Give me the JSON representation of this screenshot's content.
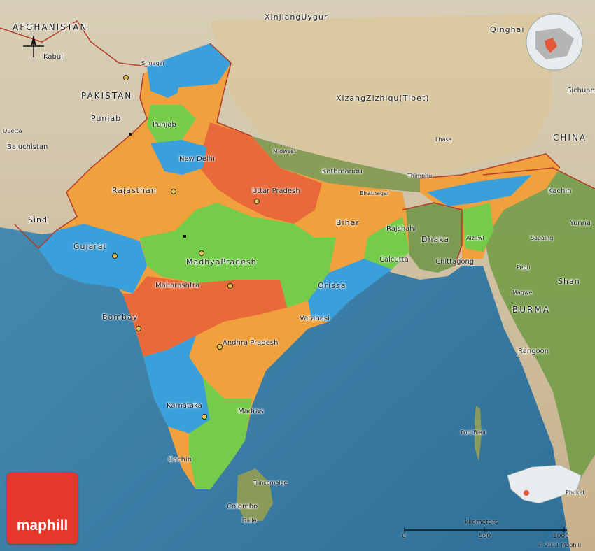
{
  "map": {
    "countries": {
      "afghanistan": "AFGHANISTAN",
      "pakistan": "PAKISTAN",
      "china": "CHINA",
      "burma": "BURMA"
    },
    "regions": {
      "xinjiang": "XinjiangUygur",
      "qinghai": "Qinghai",
      "xizang": "XizangZizhiqu(Tibet)",
      "sichuan": "Sichuan",
      "baluchistan": "Baluchistan",
      "sind": "Sind",
      "punjab_pk": "Punjab",
      "punjab_in": "Punjab",
      "rajasthan": "Rajasthan",
      "gujarat": "Gujarat",
      "madhya_pradesh": "MadhyaPradesh",
      "maharashtra": "Maharashtra",
      "uttar_pradesh": "Uttar Pradesh",
      "bihar": "Bihar",
      "orissa": "Orissa",
      "andhra_pradesh": "Andhra Pradesh",
      "karnataka": "Karnataka",
      "rajshahi": "Rajshahi",
      "midwest": "Midwest",
      "kachin": "Kachin",
      "sagaing": "Sagaing",
      "magwe": "Magwe",
      "pegu": "Pegu",
      "shan": "Shan",
      "yunnan": "Yunna"
    },
    "cities": {
      "kabul": "Kabul",
      "quetta": "Quetta",
      "srinagar": "Srinagar",
      "new_delhi": "New Delhi",
      "lhasa": "Lhasa",
      "kathmandu": "Kathmandu",
      "biratnagar": "Biratnagar",
      "thimphu": "Thimphu",
      "dhaka": "Dhaka",
      "chittagong": "Chittagong",
      "aizawl": "Aizawl",
      "calcutta": "Calcutta",
      "varanasi": "Varanasi",
      "bombay": "Bombay",
      "madras": "Madras",
      "cochin": "Cochin",
      "trincomalee": "Trincomalee",
      "colombo": "Colombo",
      "galle": "Galle",
      "rangoon": "Rangoon",
      "port_blair": "Port Blair",
      "phuket": "Phuket"
    },
    "brand": "maphill",
    "scale": {
      "unit": "kilometers",
      "ticks": [
        "0",
        "500",
        "1000"
      ]
    },
    "copyright": "© 2011 Maphill"
  },
  "colors": {
    "ocean": "#3f7fa6",
    "land": "#c9b98f",
    "orange": "#f0a03c",
    "red_orange": "#e86a3a",
    "green": "#74cc4a",
    "blue": "#3aa0dc",
    "brand": "#e5372a"
  }
}
